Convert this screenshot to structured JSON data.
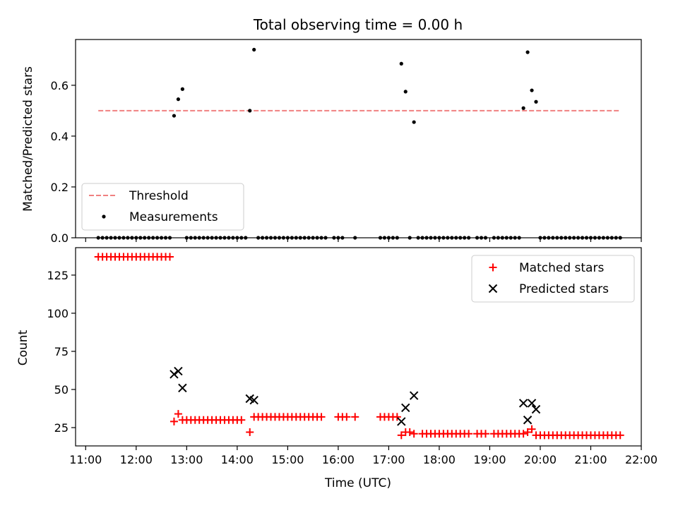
{
  "figure": {
    "title": "Total observing time = 0.00 h"
  },
  "chart_data": [
    {
      "type": "scatter",
      "ylabel": "Matched/Predicted stars",
      "xlim_hours": [
        10.8,
        22.0
      ],
      "ylim": [
        0,
        0.78
      ],
      "yticks": [
        0.0,
        0.2,
        0.4,
        0.6
      ],
      "ytick_labels": [
        "0.0",
        "0.2",
        "0.4",
        "0.6"
      ],
      "grid": false,
      "legend_position": "lower-left",
      "threshold": {
        "name": "Threshold",
        "value": 0.5,
        "x_start": "11:15",
        "x_end": "21:35",
        "color": "#f08080"
      },
      "measurements": {
        "name": "Measurements",
        "color": "#000000",
        "nonzero": [
          {
            "time": "12:45",
            "value": 0.48
          },
          {
            "time": "12:50",
            "value": 0.545
          },
          {
            "time": "12:55",
            "value": 0.585
          },
          {
            "time": "14:15",
            "value": 0.5
          },
          {
            "time": "14:20",
            "value": 0.74
          },
          {
            "time": "17:15",
            "value": 0.685
          },
          {
            "time": "17:20",
            "value": 0.575
          },
          {
            "time": "17:30",
            "value": 0.455
          },
          {
            "time": "19:40",
            "value": 0.51
          },
          {
            "time": "19:45",
            "value": 0.73
          },
          {
            "time": "19:50",
            "value": 0.58
          },
          {
            "time": "19:55",
            "value": 0.535
          }
        ],
        "zero_runs": [
          {
            "start": "11:15",
            "end": "12:40",
            "step_minutes": 5,
            "value": 0
          },
          {
            "start": "13:00",
            "end": "14:10",
            "step_minutes": 5,
            "value": 0
          },
          {
            "start": "14:25",
            "end": "15:45",
            "step_minutes": 5,
            "value": 0
          },
          {
            "start": "15:55",
            "end": "16:05",
            "step_minutes": 5,
            "value": 0
          },
          {
            "start": "16:20",
            "end": "16:20",
            "step_minutes": 5,
            "value": 0
          },
          {
            "start": "16:50",
            "end": "17:10",
            "step_minutes": 5,
            "value": 0
          },
          {
            "start": "17:25",
            "end": "17:25",
            "step_minutes": 5,
            "value": 0
          },
          {
            "start": "17:35",
            "end": "18:35",
            "step_minutes": 5,
            "value": 0
          },
          {
            "start": "18:45",
            "end": "18:55",
            "step_minutes": 5,
            "value": 0
          },
          {
            "start": "19:05",
            "end": "19:35",
            "step_minutes": 5,
            "value": 0
          },
          {
            "start": "20:00",
            "end": "21:35",
            "step_minutes": 5,
            "value": 0
          }
        ]
      }
    },
    {
      "type": "scatter",
      "xlabel": "Time (UTC)",
      "ylabel": "Count",
      "xlim_hours": [
        10.8,
        22.0
      ],
      "ylim": [
        13,
        143
      ],
      "xticks": [
        "11:00",
        "12:00",
        "13:00",
        "14:00",
        "15:00",
        "16:00",
        "17:00",
        "18:00",
        "19:00",
        "20:00",
        "21:00",
        "22:00"
      ],
      "yticks": [
        25,
        50,
        75,
        100,
        125
      ],
      "ytick_labels": [
        "25",
        "50",
        "75",
        "100",
        "125"
      ],
      "grid": false,
      "legend_position": "upper-right",
      "series": [
        {
          "name": "Matched stars",
          "marker": "plus",
          "color": "#ff0000",
          "runs": [
            {
              "start": "11:15",
              "end": "12:40",
              "step_minutes": 5,
              "value": 137
            },
            {
              "start": "13:00",
              "end": "14:05",
              "step_minutes": 5,
              "value": 30
            },
            {
              "start": "14:25",
              "end": "15:40",
              "step_minutes": 5,
              "value": 32
            },
            {
              "start": "16:00",
              "end": "16:10",
              "step_minutes": 5,
              "value": 32
            },
            {
              "start": "16:20",
              "end": "16:20",
              "step_minutes": 5,
              "value": 32
            },
            {
              "start": "16:50",
              "end": "17:10",
              "step_minutes": 5,
              "value": 32
            },
            {
              "start": "17:40",
              "end": "18:35",
              "step_minutes": 5,
              "value": 21
            },
            {
              "start": "18:45",
              "end": "18:55",
              "step_minutes": 5,
              "value": 21
            },
            {
              "start": "19:05",
              "end": "19:35",
              "step_minutes": 5,
              "value": 21
            },
            {
              "start": "20:00",
              "end": "21:35",
              "step_minutes": 5,
              "value": 20
            }
          ],
          "points": [
            {
              "time": "12:45",
              "value": 29
            },
            {
              "time": "12:50",
              "value": 34
            },
            {
              "time": "12:55",
              "value": 30
            },
            {
              "time": "14:15",
              "value": 22
            },
            {
              "time": "14:20",
              "value": 32
            },
            {
              "time": "17:15",
              "value": 20
            },
            {
              "time": "17:20",
              "value": 22
            },
            {
              "time": "17:25",
              "value": 22
            },
            {
              "time": "17:30",
              "value": 21
            },
            {
              "time": "19:40",
              "value": 21
            },
            {
              "time": "19:45",
              "value": 22
            },
            {
              "time": "19:50",
              "value": 24
            },
            {
              "time": "19:55",
              "value": 20
            }
          ]
        },
        {
          "name": "Predicted stars",
          "marker": "x",
          "color": "#000000",
          "points": [
            {
              "time": "12:45",
              "value": 60
            },
            {
              "time": "12:50",
              "value": 62
            },
            {
              "time": "12:55",
              "value": 51
            },
            {
              "time": "14:15",
              "value": 44
            },
            {
              "time": "14:20",
              "value": 43
            },
            {
              "time": "17:15",
              "value": 29
            },
            {
              "time": "17:20",
              "value": 38
            },
            {
              "time": "17:30",
              "value": 46
            },
            {
              "time": "19:40",
              "value": 41
            },
            {
              "time": "19:45",
              "value": 30
            },
            {
              "time": "19:50",
              "value": 41
            },
            {
              "time": "19:55",
              "value": 37
            }
          ]
        }
      ]
    }
  ]
}
